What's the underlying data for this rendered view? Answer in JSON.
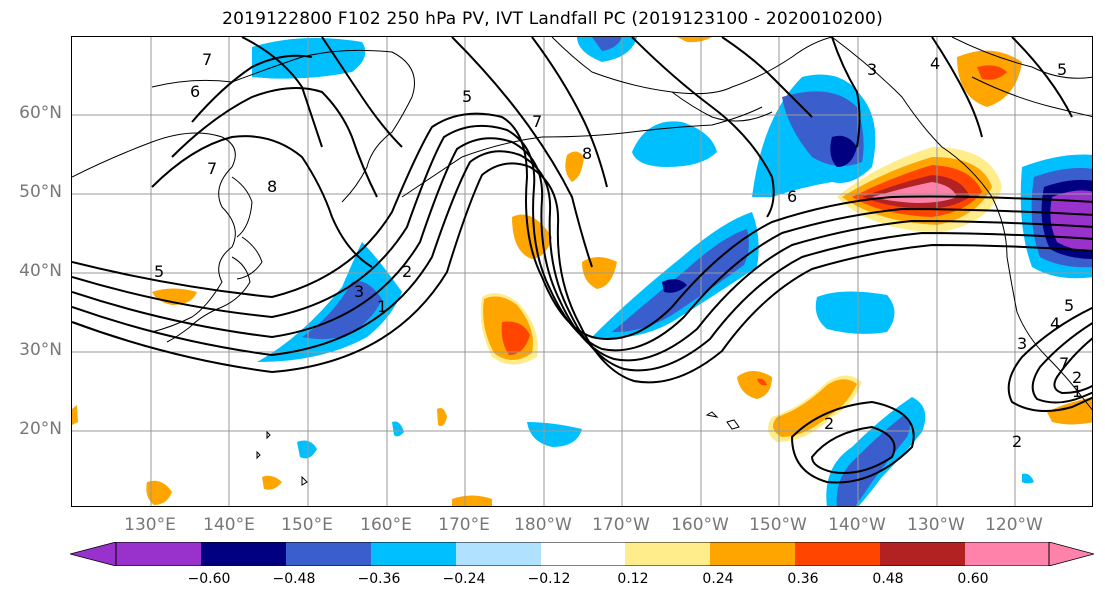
{
  "title": "2019122800 F102 250 hPa PV, IVT Landfall PC (2019123100 - 2020010200)",
  "map": {
    "lat_labels": [
      "60°N",
      "50°N",
      "40°N",
      "30°N",
      "20°N"
    ],
    "lon_labels": [
      "130°E",
      "140°E",
      "150°E",
      "160°E",
      "170°E",
      "180°W",
      "170°W",
      "160°W",
      "150°W",
      "140°W",
      "130°W",
      "120°W"
    ],
    "contour_labels": [
      "7",
      "6",
      "7",
      "5",
      "7",
      "8",
      "8",
      "3",
      "4",
      "5",
      "6",
      "5",
      "2",
      "3",
      "1",
      "5",
      "4",
      "3",
      "2",
      "7",
      "2",
      "1",
      "2"
    ],
    "fill_colors": {
      "neg_060": "#9932CC",
      "neg_048": "#000080",
      "neg_036": "#3A5FCD",
      "neg_024": "#00BFFF",
      "neg_012": "#B0E2FF",
      "pos_012": "#FFEC8B",
      "pos_024": "#FFA500",
      "pos_036": "#FF4500",
      "pos_048": "#B22222",
      "pos_060": "#FF82AB"
    }
  },
  "colorbar": {
    "tick_labels": [
      "−0.60",
      "−0.48",
      "−0.36",
      "−0.24",
      "−0.12",
      "0.12",
      "0.24",
      "0.36",
      "0.48",
      "0.60"
    ],
    "colors": [
      "#9932CC",
      "#000080",
      "#3A5FCD",
      "#00BFFF",
      "#B0E2FF",
      "#FFFFFF",
      "#FFEC8B",
      "#FFA500",
      "#FF4500",
      "#B22222",
      "#FF82AB"
    ]
  }
}
